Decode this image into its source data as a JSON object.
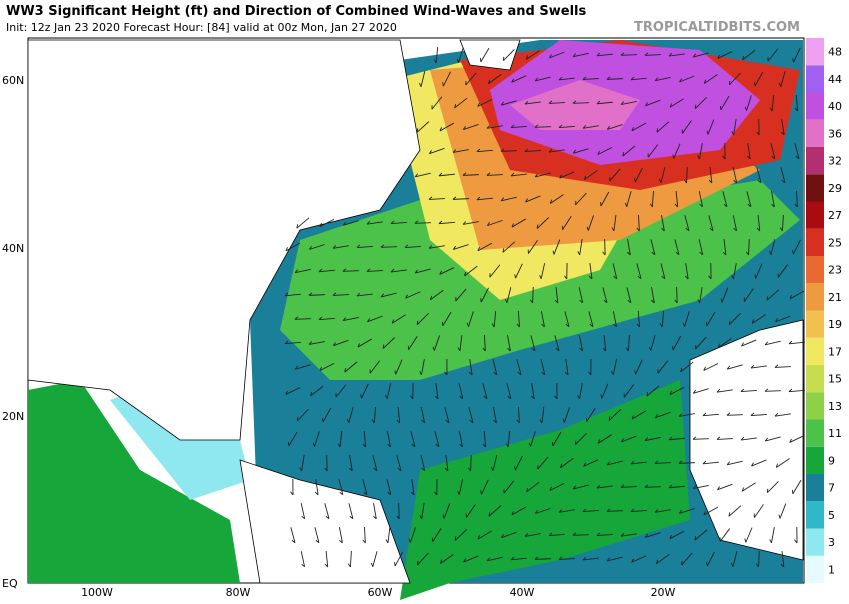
{
  "header": {
    "title": "WW3 Significant Height (ft) and Direction of Combined Wind-Waves and Swells",
    "subtitle": "Init: 12z Jan 23 2020   Forecast Hour: [84]   valid at 00z Mon, Jan 27 2020",
    "source": "TROPICALTIDBITS.COM"
  },
  "map": {
    "lat_labels": [
      "60N",
      "40N",
      "20N",
      "EQ"
    ],
    "lon_labels": [
      "100W",
      "80W",
      "60W",
      "40W",
      "20W"
    ]
  },
  "colorbar": {
    "ticks": [
      1,
      3,
      5,
      7,
      9,
      11,
      13,
      15,
      17,
      19,
      21,
      23,
      25,
      27,
      29,
      32,
      36,
      40,
      44,
      48
    ],
    "colors": [
      "#e6fbff",
      "#8fe8f0",
      "#2fb8c8",
      "#1a7f98",
      "#16a63a",
      "#4cc24a",
      "#8ed048",
      "#c8dc50",
      "#f0e860",
      "#f2c050",
      "#ee9a40",
      "#e86a30",
      "#d83020",
      "#a80c10",
      "#701010",
      "#b03070",
      "#e070c8",
      "#c050e0",
      "#a060f0",
      "#f0a0f0"
    ]
  }
}
